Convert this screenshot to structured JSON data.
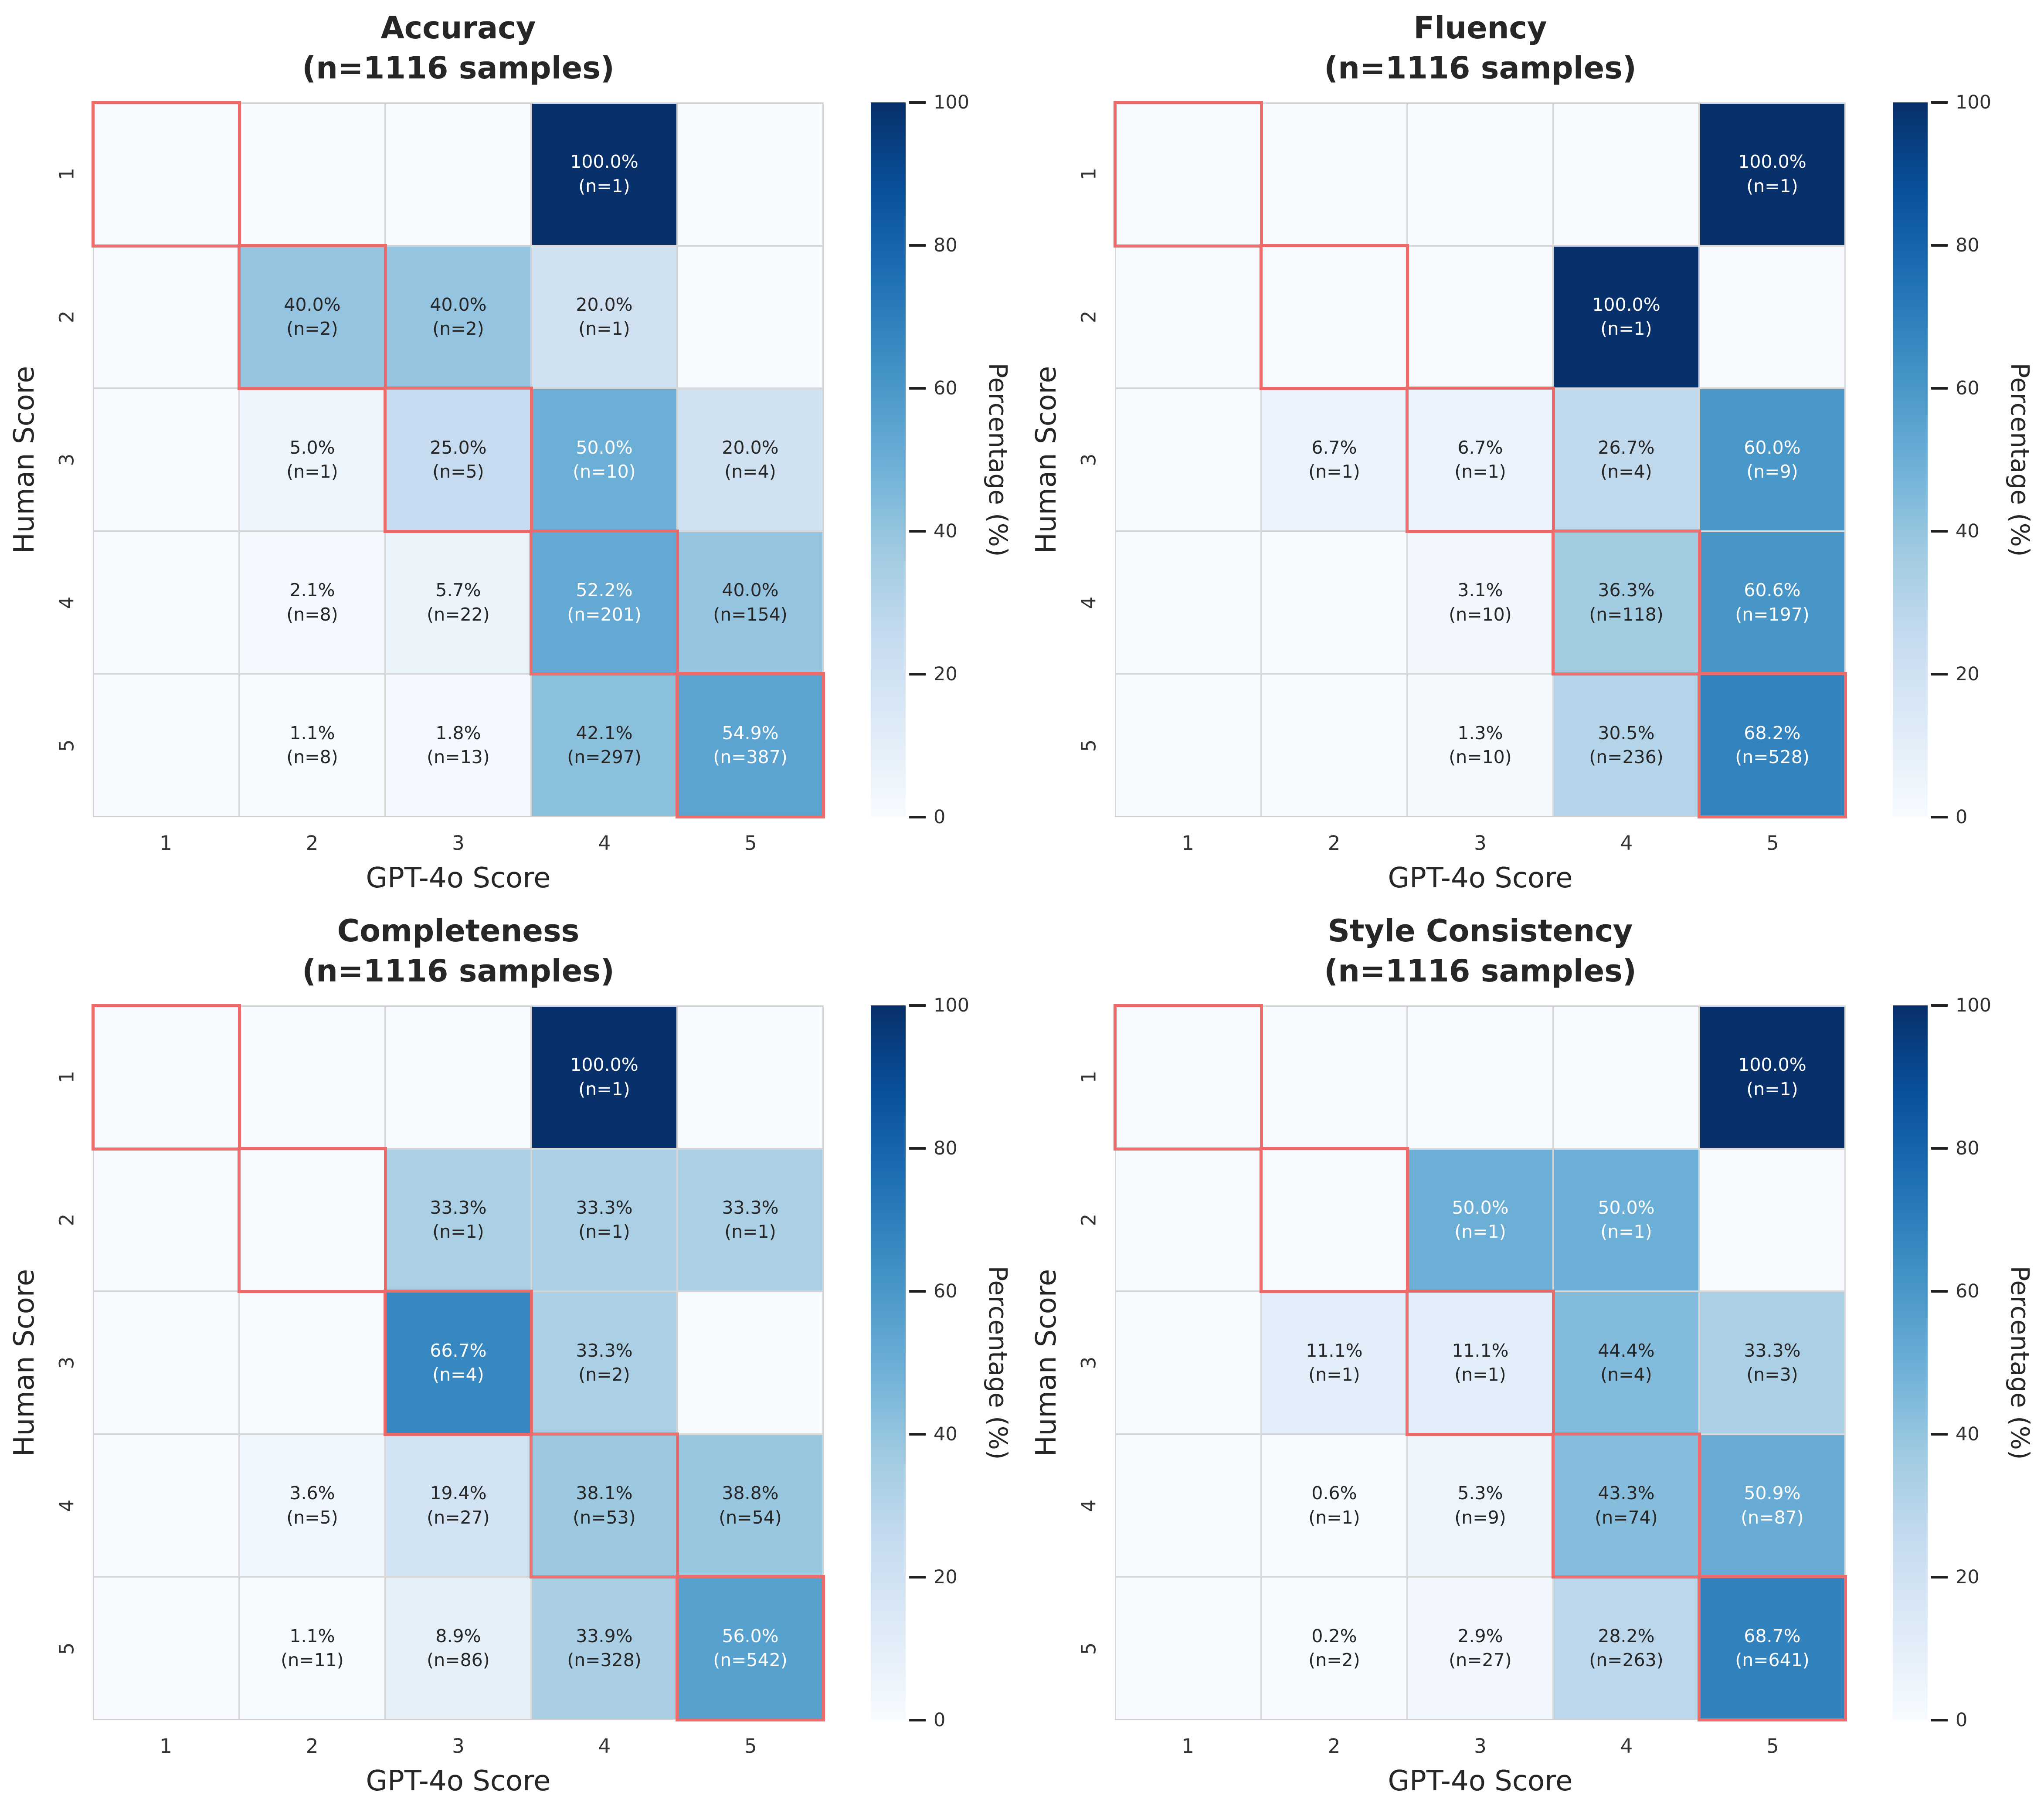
{
  "figure": {
    "background": "#ffffff",
    "layout": "2x2-grid",
    "styles": {
      "diagonal_outline_color": "#ec6b6b",
      "grid_line_color": "#d6d6d6",
      "text_dark": "#262626",
      "text_light": "#ffffff",
      "colormap": "Blues",
      "colormap_stops": [
        "#f7fbff",
        "#deebf7",
        "#c6dbef",
        "#9ecae1",
        "#6baed6",
        "#4292c6",
        "#2171b5",
        "#08519c",
        "#08306b"
      ]
    }
  },
  "chart_data": [
    {
      "type": "heatmap",
      "title": "Accuracy",
      "subtitle": "(n=1116 samples)",
      "xlabel": "GPT-4o Score",
      "ylabel": "Human Score",
      "x_tick_labels": [
        "1",
        "2",
        "3",
        "4",
        "5"
      ],
      "y_tick_labels": [
        "1",
        "2",
        "3",
        "4",
        "5"
      ],
      "value_range": [
        0,
        100
      ],
      "colorbar": {
        "label": "Percentage (%)",
        "ticks": [
          0,
          20,
          40,
          60,
          80,
          100
        ]
      },
      "diagonal_highlight": true,
      "cells": [
        [
          null,
          null,
          null,
          {
            "pct": 100.0,
            "n": 1
          },
          null
        ],
        [
          null,
          {
            "pct": 40.0,
            "n": 2
          },
          {
            "pct": 40.0,
            "n": 2
          },
          {
            "pct": 20.0,
            "n": 1
          },
          null
        ],
        [
          null,
          {
            "pct": 5.0,
            "n": 1
          },
          {
            "pct": 25.0,
            "n": 5
          },
          {
            "pct": 50.0,
            "n": 10
          },
          {
            "pct": 20.0,
            "n": 4
          }
        ],
        [
          null,
          {
            "pct": 2.1,
            "n": 8
          },
          {
            "pct": 5.7,
            "n": 22
          },
          {
            "pct": 52.2,
            "n": 201
          },
          {
            "pct": 40.0,
            "n": 154
          }
        ],
        [
          null,
          {
            "pct": 1.1,
            "n": 8
          },
          {
            "pct": 1.8,
            "n": 13
          },
          {
            "pct": 42.1,
            "n": 297
          },
          {
            "pct": 54.9,
            "n": 387
          }
        ]
      ]
    },
    {
      "type": "heatmap",
      "title": "Fluency",
      "subtitle": "(n=1116 samples)",
      "xlabel": "GPT-4o Score",
      "ylabel": "Human Score",
      "x_tick_labels": [
        "1",
        "2",
        "3",
        "4",
        "5"
      ],
      "y_tick_labels": [
        "1",
        "2",
        "3",
        "4",
        "5"
      ],
      "value_range": [
        0,
        100
      ],
      "colorbar": {
        "label": "Percentage (%)",
        "ticks": [
          0,
          20,
          40,
          60,
          80,
          100
        ]
      },
      "diagonal_highlight": true,
      "cells": [
        [
          null,
          null,
          null,
          null,
          {
            "pct": 100.0,
            "n": 1
          }
        ],
        [
          null,
          null,
          null,
          {
            "pct": 100.0,
            "n": 1
          },
          null
        ],
        [
          null,
          {
            "pct": 6.7,
            "n": 1
          },
          {
            "pct": 6.7,
            "n": 1
          },
          {
            "pct": 26.7,
            "n": 4
          },
          {
            "pct": 60.0,
            "n": 9
          }
        ],
        [
          null,
          null,
          {
            "pct": 3.1,
            "n": 10
          },
          {
            "pct": 36.3,
            "n": 118
          },
          {
            "pct": 60.6,
            "n": 197
          }
        ],
        [
          null,
          null,
          {
            "pct": 1.3,
            "n": 10
          },
          {
            "pct": 30.5,
            "n": 236
          },
          {
            "pct": 68.2,
            "n": 528
          }
        ]
      ]
    },
    {
      "type": "heatmap",
      "title": "Completeness",
      "subtitle": "(n=1116 samples)",
      "xlabel": "GPT-4o Score",
      "ylabel": "Human Score",
      "x_tick_labels": [
        "1",
        "2",
        "3",
        "4",
        "5"
      ],
      "y_tick_labels": [
        "1",
        "2",
        "3",
        "4",
        "5"
      ],
      "value_range": [
        0,
        100
      ],
      "colorbar": {
        "label": "Percentage (%)",
        "ticks": [
          0,
          20,
          40,
          60,
          80,
          100
        ]
      },
      "diagonal_highlight": true,
      "cells": [
        [
          null,
          null,
          null,
          {
            "pct": 100.0,
            "n": 1
          },
          null
        ],
        [
          null,
          null,
          {
            "pct": 33.3,
            "n": 1
          },
          {
            "pct": 33.3,
            "n": 1
          },
          {
            "pct": 33.3,
            "n": 1
          }
        ],
        [
          null,
          null,
          {
            "pct": 66.7,
            "n": 4
          },
          {
            "pct": 33.3,
            "n": 2
          },
          null
        ],
        [
          null,
          {
            "pct": 3.6,
            "n": 5
          },
          {
            "pct": 19.4,
            "n": 27
          },
          {
            "pct": 38.1,
            "n": 53
          },
          {
            "pct": 38.8,
            "n": 54
          }
        ],
        [
          null,
          {
            "pct": 1.1,
            "n": 11
          },
          {
            "pct": 8.9,
            "n": 86
          },
          {
            "pct": 33.9,
            "n": 328
          },
          {
            "pct": 56.0,
            "n": 542
          }
        ]
      ]
    },
    {
      "type": "heatmap",
      "title": "Style Consistency",
      "subtitle": "(n=1116 samples)",
      "xlabel": "GPT-4o Score",
      "ylabel": "Human Score",
      "x_tick_labels": [
        "1",
        "2",
        "3",
        "4",
        "5"
      ],
      "y_tick_labels": [
        "1",
        "2",
        "3",
        "4",
        "5"
      ],
      "value_range": [
        0,
        100
      ],
      "colorbar": {
        "label": "Percentage (%)",
        "ticks": [
          0,
          20,
          40,
          60,
          80,
          100
        ]
      },
      "diagonal_highlight": true,
      "cells": [
        [
          null,
          null,
          null,
          null,
          {
            "pct": 100.0,
            "n": 1
          }
        ],
        [
          null,
          null,
          {
            "pct": 50.0,
            "n": 1
          },
          {
            "pct": 50.0,
            "n": 1
          },
          null
        ],
        [
          null,
          {
            "pct": 11.1,
            "n": 1
          },
          {
            "pct": 11.1,
            "n": 1
          },
          {
            "pct": 44.4,
            "n": 4
          },
          {
            "pct": 33.3,
            "n": 3
          }
        ],
        [
          null,
          {
            "pct": 0.6,
            "n": 1
          },
          {
            "pct": 5.3,
            "n": 9
          },
          {
            "pct": 43.3,
            "n": 74
          },
          {
            "pct": 50.9,
            "n": 87
          }
        ],
        [
          null,
          {
            "pct": 0.2,
            "n": 2
          },
          {
            "pct": 2.9,
            "n": 27
          },
          {
            "pct": 28.2,
            "n": 263
          },
          {
            "pct": 68.7,
            "n": 641
          }
        ]
      ]
    }
  ]
}
